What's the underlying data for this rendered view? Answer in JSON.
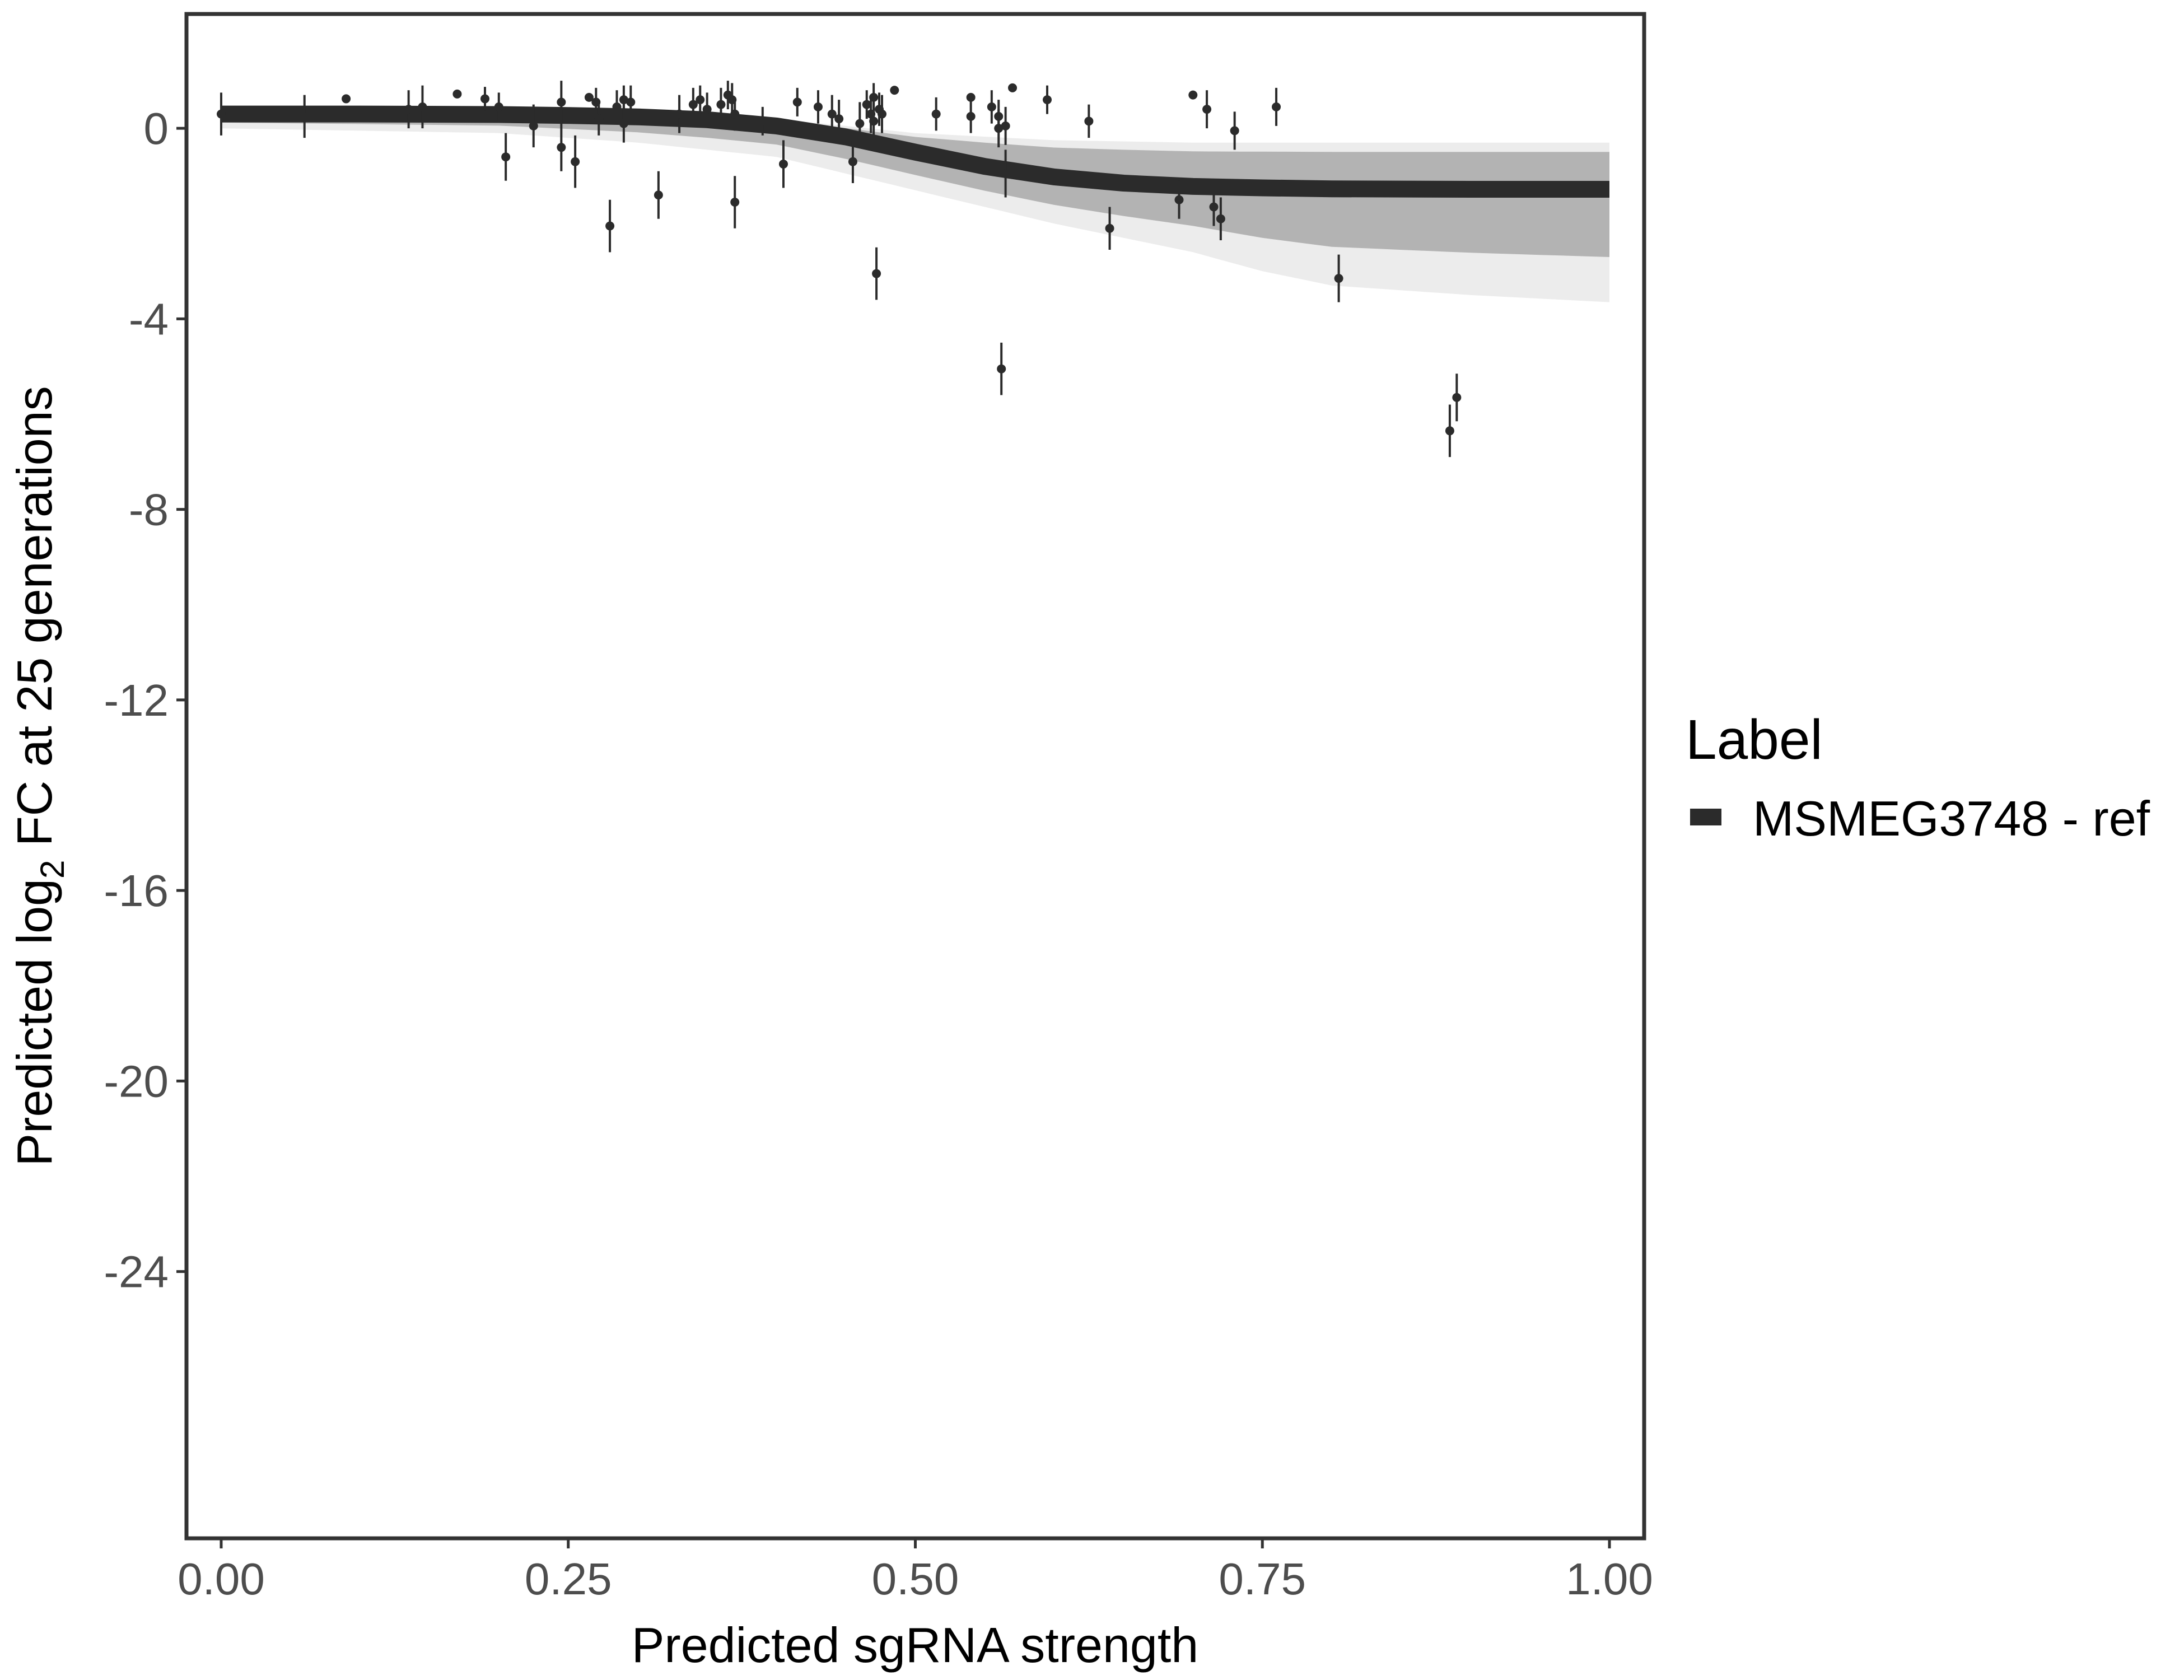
{
  "chart_data": {
    "type": "scatter",
    "xlabel": "Predicted sgRNA strength",
    "ylabel": "Predicted  log₂ FC at 25 generations",
    "ylabel_parts": {
      "before": "Predicted  log",
      "sub": "2",
      "after": " FC at 25 generations"
    },
    "xlim": [
      -0.025,
      1.025
    ],
    "ylim": [
      -29.6,
      2.4
    ],
    "x_ticks": [
      0,
      0.25,
      0.5,
      0.75,
      1
    ],
    "x_tick_labels": [
      "0.00",
      "0.25",
      "0.50",
      "0.75",
      "1.00"
    ],
    "y_ticks": [
      0,
      -4,
      -8,
      -12,
      -16,
      -20,
      -24
    ],
    "y_tick_labels": [
      "0",
      "-4",
      "-8",
      "-12",
      "-16",
      "-20",
      "-24"
    ],
    "grid": false,
    "legend": {
      "title": "Label",
      "position": "right",
      "entries": [
        "MSMEG3748 - ref"
      ]
    },
    "colors": {
      "fit": "#2b2b2b",
      "band": "#b3b3b3",
      "points": "#2b2b2b",
      "frame": "#333333"
    },
    "fit_curve": {
      "x": [
        0,
        0.1,
        0.2,
        0.25,
        0.3,
        0.35,
        0.4,
        0.45,
        0.5,
        0.55,
        0.6,
        0.65,
        0.7,
        0.75,
        0.8,
        0.9,
        1
      ],
      "y": [
        0.3,
        0.3,
        0.29,
        0.27,
        0.24,
        0.18,
        0.05,
        -0.18,
        -0.5,
        -0.8,
        -1.02,
        -1.15,
        -1.22,
        -1.25,
        -1.27,
        -1.28,
        -1.28
      ]
    },
    "band_upper": {
      "x": [
        0,
        0.2,
        0.3,
        0.4,
        0.5,
        0.6,
        0.7,
        0.8,
        1
      ],
      "y": [
        0.4,
        0.35,
        0.3,
        0.2,
        -0.1,
        -0.25,
        -0.3,
        -0.3,
        -0.3
      ]
    },
    "band_lower": {
      "x": [
        0,
        0.2,
        0.3,
        0.4,
        0.5,
        0.6,
        0.7,
        0.75,
        0.8,
        0.9,
        1
      ],
      "y": [
        0.0,
        -0.1,
        -0.3,
        -0.6,
        -1.3,
        -2.0,
        -2.6,
        -3.0,
        -3.3,
        -3.5,
        -3.65
      ]
    },
    "points": [
      {
        "x": 0.0,
        "y": 0.3,
        "err": 0.45
      },
      {
        "x": 0.06,
        "y": 0.25,
        "err": 0.45
      },
      {
        "x": 0.09,
        "y": 0.62,
        "err": 0
      },
      {
        "x": 0.135,
        "y": 0.4,
        "err": 0.4
      },
      {
        "x": 0.145,
        "y": 0.45,
        "err": 0.45
      },
      {
        "x": 0.17,
        "y": 0.72,
        "err": 0
      },
      {
        "x": 0.19,
        "y": 0.62,
        "err": 0.25
      },
      {
        "x": 0.2,
        "y": 0.45,
        "err": 0.3
      },
      {
        "x": 0.205,
        "y": -0.6,
        "err": 0.5
      },
      {
        "x": 0.225,
        "y": 0.05,
        "err": 0.45
      },
      {
        "x": 0.245,
        "y": 0.55,
        "err": 0.45
      },
      {
        "x": 0.245,
        "y": -0.4,
        "err": 0.5
      },
      {
        "x": 0.255,
        "y": -0.7,
        "err": 0.55
      },
      {
        "x": 0.265,
        "y": 0.65,
        "err": 0
      },
      {
        "x": 0.27,
        "y": 0.55,
        "err": 0.3
      },
      {
        "x": 0.272,
        "y": 0.2,
        "err": 0.35
      },
      {
        "x": 0.28,
        "y": -2.05,
        "err": 0.55
      },
      {
        "x": 0.285,
        "y": 0.45,
        "err": 0.35
      },
      {
        "x": 0.29,
        "y": 0.6,
        "err": 0.3
      },
      {
        "x": 0.29,
        "y": 0.1,
        "err": 0.4
      },
      {
        "x": 0.295,
        "y": 0.55,
        "err": 0.35
      },
      {
        "x": 0.315,
        "y": -1.4,
        "err": 0.5
      },
      {
        "x": 0.33,
        "y": 0.3,
        "err": 0.4
      },
      {
        "x": 0.34,
        "y": 0.5,
        "err": 0.35
      },
      {
        "x": 0.345,
        "y": 0.6,
        "err": 0.3
      },
      {
        "x": 0.35,
        "y": 0.4,
        "err": 0.35
      },
      {
        "x": 0.36,
        "y": 0.5,
        "err": 0.35
      },
      {
        "x": 0.365,
        "y": 0.7,
        "err": 0.3
      },
      {
        "x": 0.368,
        "y": 0.6,
        "err": 0.35
      },
      {
        "x": 0.37,
        "y": 0.3,
        "err": 0.35
      },
      {
        "x": 0.37,
        "y": -1.55,
        "err": 0.55
      },
      {
        "x": 0.39,
        "y": 0.15,
        "err": 0.3
      },
      {
        "x": 0.405,
        "y": -0.75,
        "err": 0.5
      },
      {
        "x": 0.415,
        "y": 0.55,
        "err": 0.3
      },
      {
        "x": 0.43,
        "y": 0.45,
        "err": 0.35
      },
      {
        "x": 0.44,
        "y": 0.3,
        "err": 0.4
      },
      {
        "x": 0.445,
        "y": 0.2,
        "err": 0.4
      },
      {
        "x": 0.455,
        "y": -0.7,
        "err": 0.45
      },
      {
        "x": 0.46,
        "y": 0.1,
        "err": 0.45
      },
      {
        "x": 0.465,
        "y": 0.5,
        "err": 0.3
      },
      {
        "x": 0.468,
        "y": 0.3,
        "err": 0.4
      },
      {
        "x": 0.47,
        "y": 0.65,
        "err": 0.3
      },
      {
        "x": 0.47,
        "y": 0.15,
        "err": 0.4
      },
      {
        "x": 0.472,
        "y": -3.05,
        "err": 0.55
      },
      {
        "x": 0.474,
        "y": 0.4,
        "err": 0.35
      },
      {
        "x": 0.476,
        "y": 0.3,
        "err": 0.4
      },
      {
        "x": 0.485,
        "y": 0.8,
        "err": 0
      },
      {
        "x": 0.515,
        "y": 0.3,
        "err": 0.35
      },
      {
        "x": 0.54,
        "y": 0.65,
        "err": 0
      },
      {
        "x": 0.54,
        "y": 0.25,
        "err": 0.35
      },
      {
        "x": 0.555,
        "y": 0.45,
        "err": 0.35
      },
      {
        "x": 0.56,
        "y": 0.25,
        "err": 0.35
      },
      {
        "x": 0.56,
        "y": 0.0,
        "err": 0.4
      },
      {
        "x": 0.562,
        "y": -5.05,
        "err": 0.55
      },
      {
        "x": 0.565,
        "y": 0.05,
        "err": 0.4
      },
      {
        "x": 0.565,
        "y": -0.95,
        "err": 0.5
      },
      {
        "x": 0.57,
        "y": 0.85,
        "err": 0
      },
      {
        "x": 0.595,
        "y": 0.6,
        "err": 0.3
      },
      {
        "x": 0.625,
        "y": 0.15,
        "err": 0.35
      },
      {
        "x": 0.64,
        "y": -2.1,
        "err": 0.45
      },
      {
        "x": 0.69,
        "y": -1.5,
        "err": 0.4
      },
      {
        "x": 0.7,
        "y": 0.7,
        "err": 0
      },
      {
        "x": 0.71,
        "y": 0.4,
        "err": 0.4
      },
      {
        "x": 0.715,
        "y": -1.65,
        "err": 0.4
      },
      {
        "x": 0.72,
        "y": -1.9,
        "err": 0.45
      },
      {
        "x": 0.73,
        "y": -0.05,
        "err": 0.4
      },
      {
        "x": 0.76,
        "y": 0.45,
        "err": 0.4
      },
      {
        "x": 0.805,
        "y": -3.15,
        "err": 0.5
      },
      {
        "x": 0.885,
        "y": -6.35,
        "err": 0.55
      },
      {
        "x": 0.89,
        "y": -5.65,
        "err": 0.5
      }
    ]
  }
}
